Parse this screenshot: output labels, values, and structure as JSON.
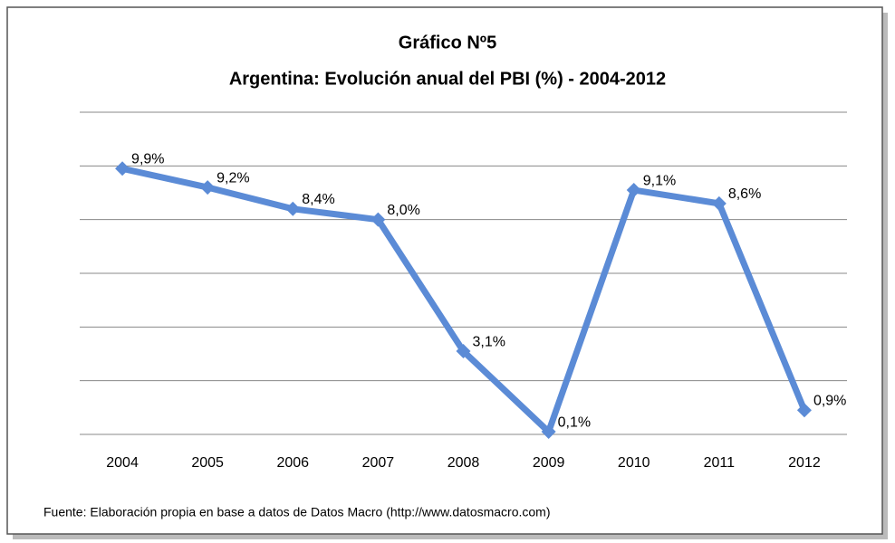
{
  "chart_data": {
    "type": "line",
    "title": "Gráfico Nº5",
    "subtitle": "Argentina: Evolución anual del PBI (%) - 2004-2012",
    "categories": [
      "2004",
      "2005",
      "2006",
      "2007",
      "2008",
      "2009",
      "2010",
      "2011",
      "2012"
    ],
    "series": [
      {
        "name": "PBI",
        "color": "#5b8bd6",
        "values": [
          9.9,
          9.2,
          8.4,
          8.0,
          3.1,
          0.1,
          9.1,
          8.6,
          0.9
        ],
        "value_labels": [
          "9,9%",
          "9,2%",
          "8,4%",
          "8,0%",
          "3,1%",
          "0,1%",
          "9,1%",
          "8,6%",
          "0,9%"
        ]
      }
    ],
    "ylim": [
      0,
      12
    ],
    "yticks": [
      0,
      2,
      4,
      6,
      8,
      10,
      12
    ],
    "grid": true,
    "annotation": "Fuente: Elaboración propia en base a datos de Datos Macro (http://www.datosmacro.com)"
  }
}
